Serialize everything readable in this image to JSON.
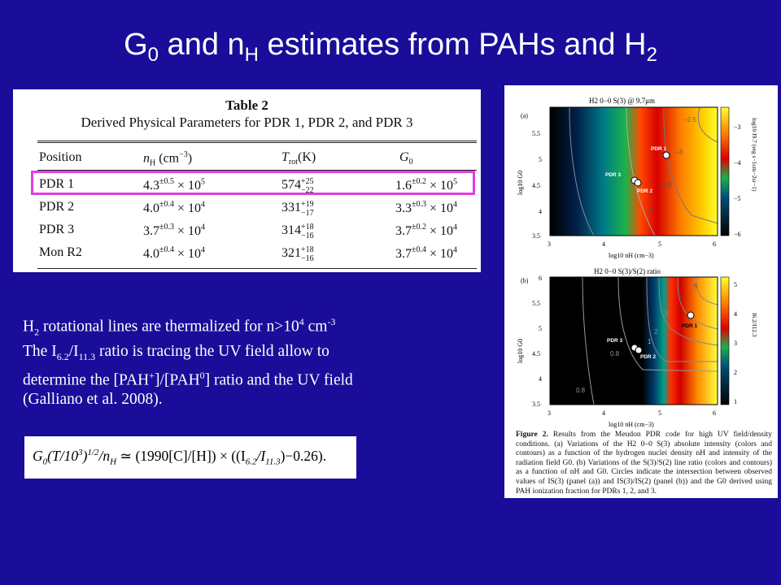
{
  "slide": {
    "title": {
      "g": "G",
      "g_sub": "0",
      "mid": " and n",
      "n_sub": "H",
      "rest": " estimates from PAHs and H",
      "h_sub": "2"
    }
  },
  "table": {
    "number": "Table 2",
    "caption": "Derived Physical Parameters for PDR 1, PDR 2, and PDR 3",
    "headers": [
      "Position",
      "n",
      "H",
      "(cm",
      "−3",
      ")",
      "T",
      "rot",
      "(K)",
      "G",
      "0"
    ],
    "rows": [
      {
        "position": "PDR 1",
        "nh_m": "4.3",
        "nh_e": "±0.5",
        "nh_p": "5",
        "t": "574",
        "t_up": "+25",
        "t_dn": "−22",
        "g_m": "1.6",
        "g_e": "±0.2",
        "g_p": "5"
      },
      {
        "position": "PDR 2",
        "nh_m": "4.0",
        "nh_e": "±0.4",
        "nh_p": "4",
        "t": "331",
        "t_up": "+19",
        "t_dn": "−17",
        "g_m": "3.3",
        "g_e": "±0.3",
        "g_p": "4"
      },
      {
        "position": "PDR 3",
        "nh_m": "3.7",
        "nh_e": "±0.3",
        "nh_p": "4",
        "t": "314",
        "t_up": "+18",
        "t_dn": "−16",
        "g_m": "3.7",
        "g_e": "±0.2",
        "g_p": "4"
      },
      {
        "position": "Mon R2",
        "nh_m": "4.0",
        "nh_e": "±0.4",
        "nh_p": "4",
        "t": "321",
        "t_up": "+18",
        "t_dn": "−16",
        "g_m": "3.7",
        "g_e": "±0.4",
        "g_p": "4"
      }
    ],
    "times": "× 10"
  },
  "figure": {
    "panel_a": {
      "label": "(a)",
      "title": "H2 0−0 S(3) @ 9.7μm",
      "ylabel": "log10 G0",
      "xlabel": "log10 nH (cm−3)",
      "cbar_label": "log10 I9.7 (erg s−1cm−2sr−1)",
      "xticks": [
        "3",
        "4",
        "5",
        "6"
      ],
      "yticks": [
        "3.5",
        "4",
        "4.5",
        "5",
        "5.5"
      ],
      "cticks": [
        "−3",
        "−4",
        "−5",
        "−6"
      ],
      "contours": [
        "−2.5",
        "−3",
        "−3.5",
        "−4"
      ],
      "points": [
        "PDR 1",
        "PDR 3",
        "PDR 2"
      ]
    },
    "panel_b": {
      "label": "(b)",
      "title": "H2 0−0 S(3)/S(2) ratio",
      "ylabel": "log10 G0",
      "xlabel": "log10 nH (cm−3)",
      "cbar_label": "I6.2/I12.3",
      "xticks": [
        "3",
        "4",
        "5",
        "6"
      ],
      "yticks": [
        "3.5",
        "4",
        "4.5",
        "5",
        "5.5",
        "6"
      ],
      "cticks": [
        "5",
        "4",
        "3",
        "2",
        "1"
      ],
      "contours": [
        "5",
        "4",
        "3",
        "2",
        "1",
        "0.8",
        "0.8"
      ],
      "points": [
        "PDR 1",
        "PDR 3",
        "PDR 2"
      ]
    },
    "caption_head": "Figure 2.",
    "caption": "Results from the Meudon PDR code for high UV field/density conditions. (a) Variations of the H2 0–0 S(3) absolute intensity (colors and contours) as a function of the hydrogen nuclei density nH and intensity of the radiation field G0. (b) Variations of the S(3)/S(2) line ratio (colors and contours) as a function of nH and G0. Circles indicate the intersection between observed values of IS(3) (panel (a)) and IS(3)/IS(2) (panel (b)) and the G0 derived using PAH ionization fraction for PDRs 1, 2, and 3."
  },
  "text": {
    "l1a": "H",
    "l1s": "2",
    "l1b": " rotational lines are thermalized for n>10",
    "l1p": "4",
    "l1c": " cm",
    "l1p2": "-3",
    "l2a": "The I",
    "l2s1": "6.2",
    "l2b": "/I",
    "l2s2": "11.3",
    "l2c": "  ratio is tracing the UV field allow to",
    "l3a": "determine the [PAH",
    "l3p1": "+",
    "l3b": "]/[PAH",
    "l3p2": "0",
    "l3c": "] ratio and the UV field",
    "l4": "(Galliano et al. 2008)."
  },
  "equation": {
    "g": "G",
    "g_sub": "0",
    "a": "(T/10",
    "a_sup": "3",
    "b": ")",
    "b_sup": "1/2",
    "c": "/n",
    "c_sub": "H",
    "d": " ≃ (1990[C]/[H]) × ((I",
    "d_sub": "6.2",
    "e": "/I",
    "e_sub": "11.3",
    "f": ")−0.26)."
  }
}
